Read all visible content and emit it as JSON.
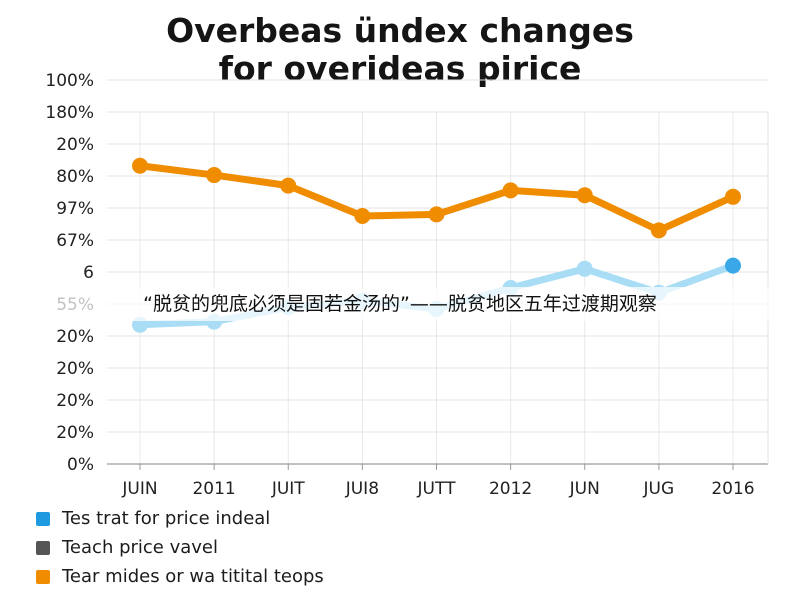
{
  "chart_data": {
    "type": "line",
    "title": [
      "Overbeas ündex changes",
      "for overideas pirice"
    ],
    "categories": [
      "JUIN",
      "2011",
      "JUIT",
      "JUI8",
      "JUTT",
      "2012",
      "JUN",
      "JUG",
      "2016"
    ],
    "y_tick_labels": [
      "0%",
      "20%",
      "20%",
      "20%",
      "20%",
      "55%",
      "6",
      "67%",
      "97%",
      "80%",
      "20%",
      "180%",
      "100%"
    ],
    "ylim": [
      0,
      11
    ],
    "grid": true,
    "series": [
      {
        "name": "Tear mides or wa titital teops",
        "color": "#f08c00",
        "values": [
          9.32,
          9.03,
          8.7,
          7.75,
          7.8,
          8.55,
          8.4,
          7.3,
          8.35
        ]
      },
      {
        "name": "Tes trat for price indeal",
        "color": "#a9dcf5",
        "marker_color": "#a9dcf5",
        "last_marker_color": "#3aa8e8",
        "values": [
          4.35,
          4.45,
          4.9,
          5.1,
          4.85,
          5.5,
          6.1,
          5.35,
          6.2
        ]
      }
    ],
    "legend": {
      "placement": "bottom-left",
      "entries": [
        {
          "label": "Tes trat for price indeal",
          "color": "#1e9be0"
        },
        {
          "label": "Teach price vavel",
          "color": "#555555"
        },
        {
          "label": "Tear mides or wa titital teops",
          "color": "#f08c00"
        }
      ]
    }
  },
  "overlay_caption": "“脱贫的兜底必须是固若金汤的”——脱贫地区五年过渡期观察"
}
